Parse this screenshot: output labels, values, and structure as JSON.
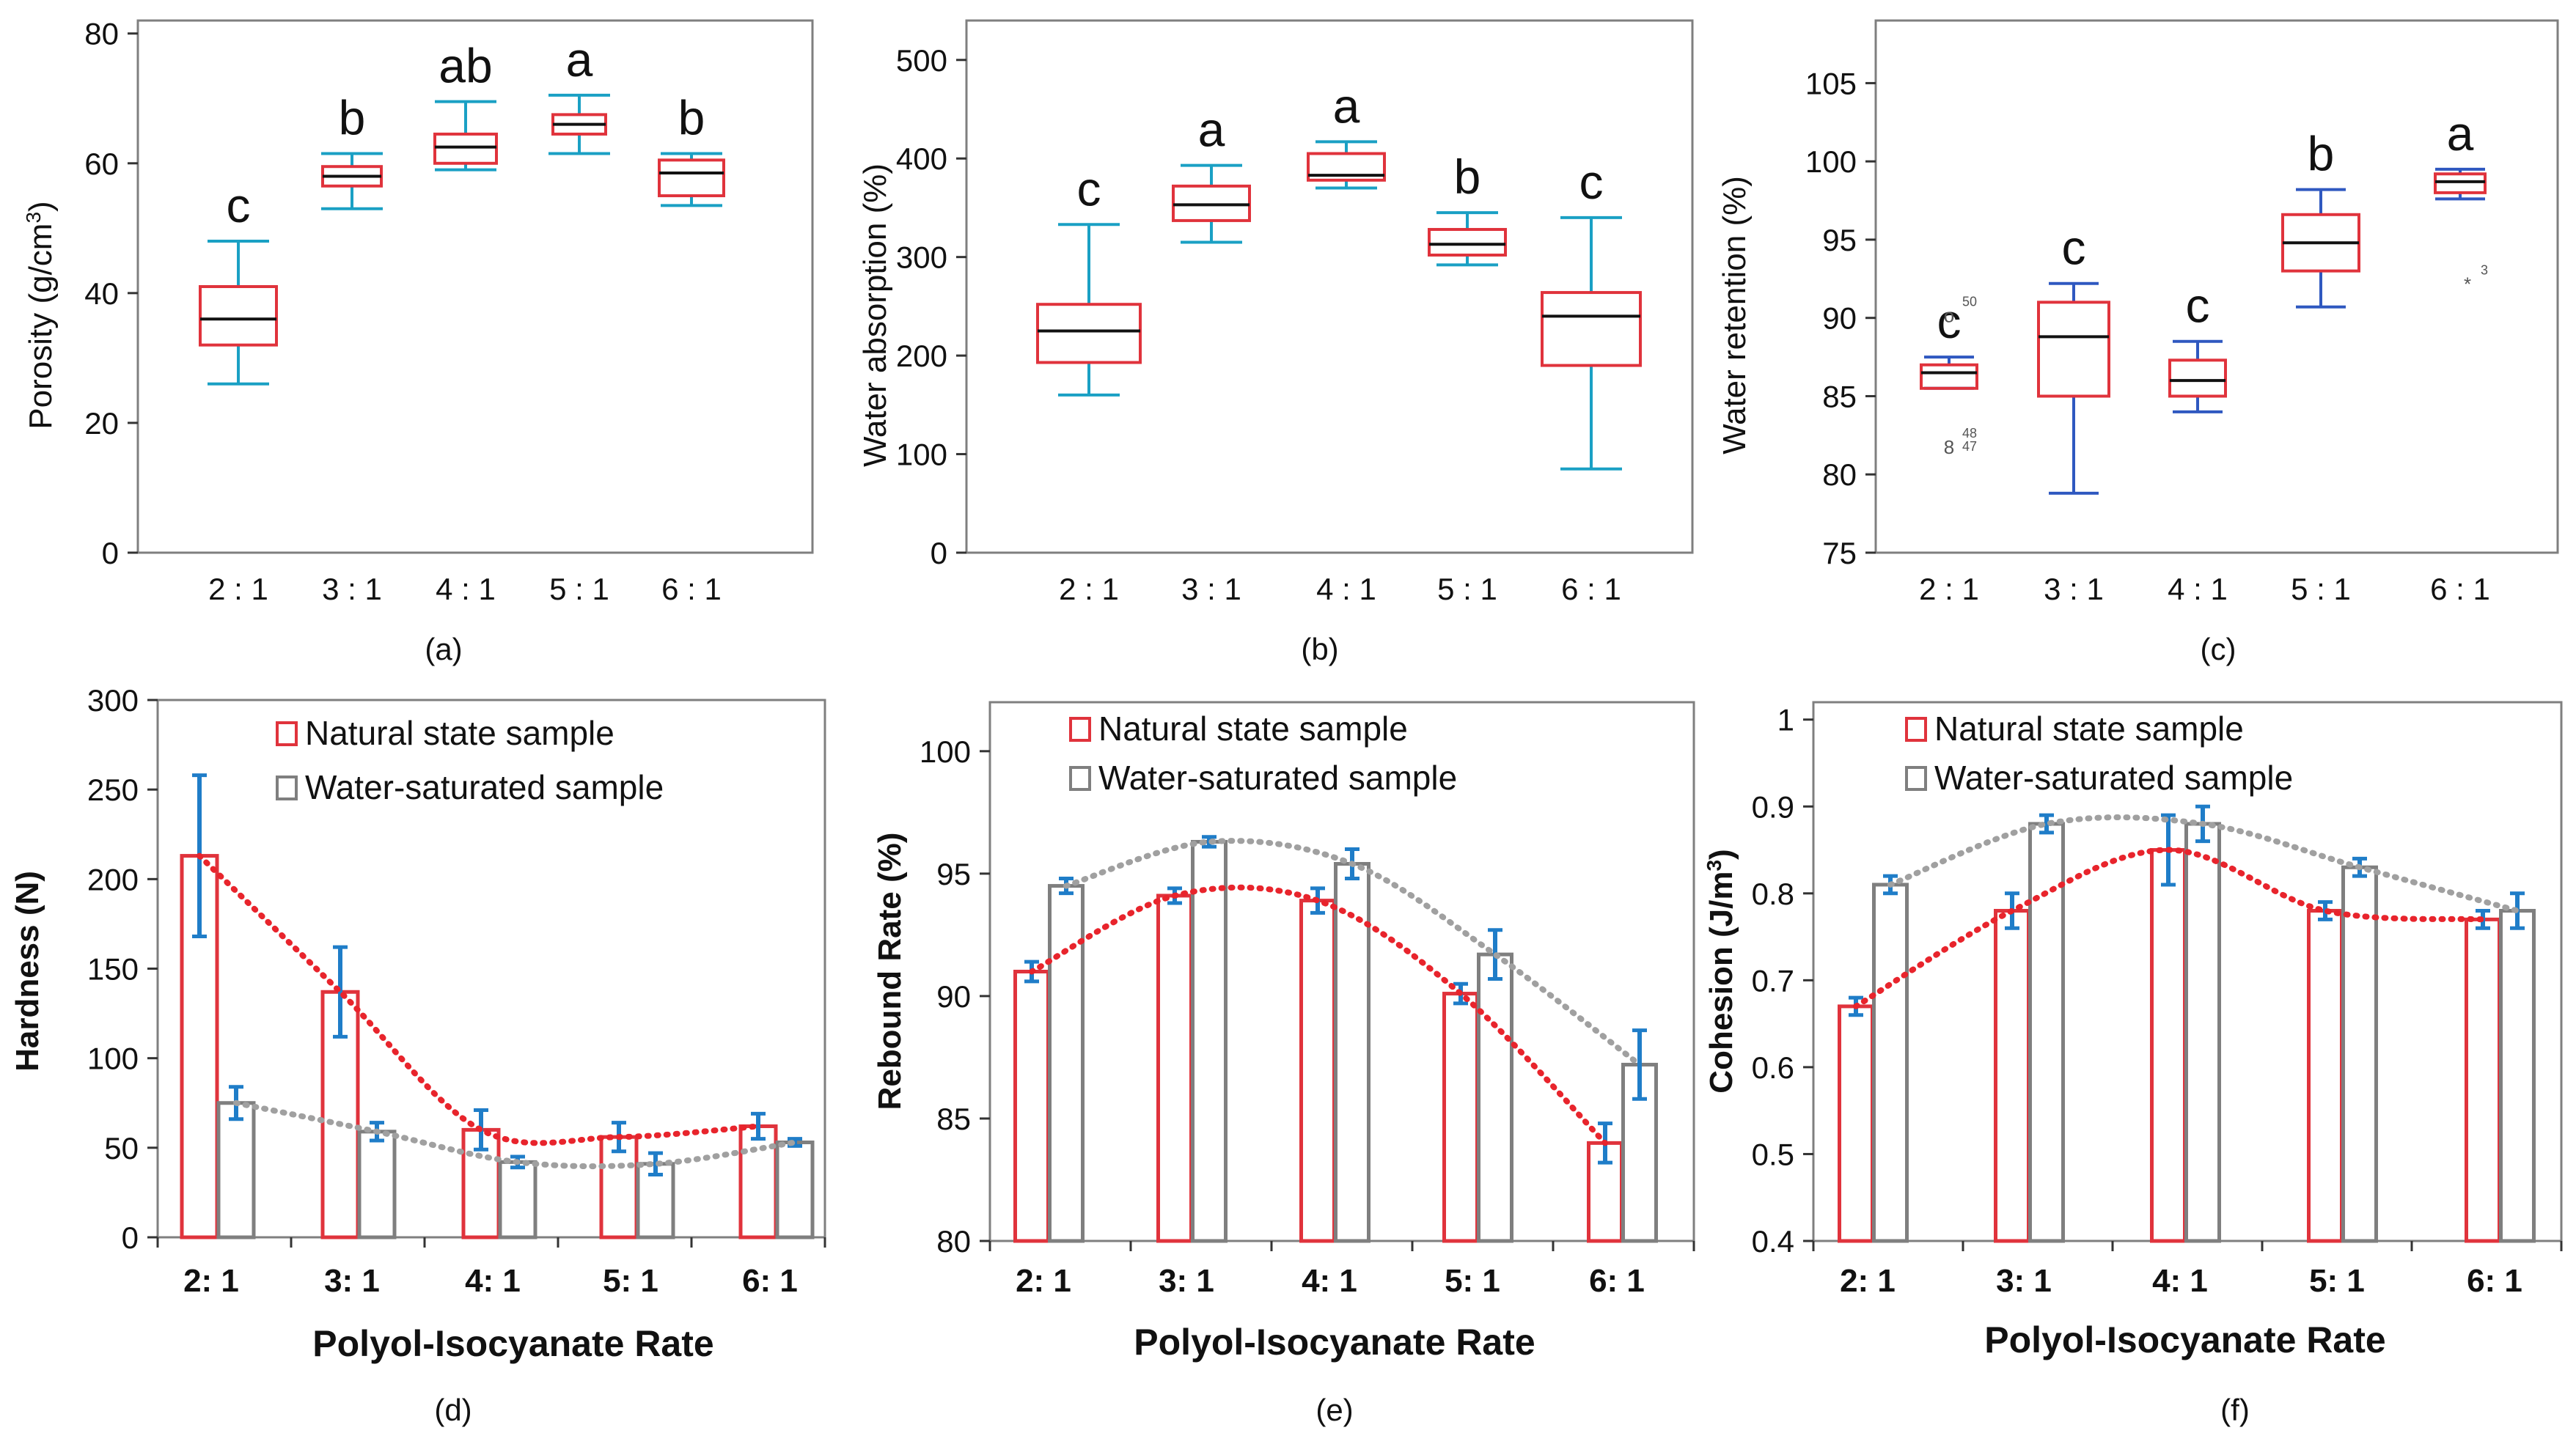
{
  "chart_data": [
    {
      "panel": "(a)",
      "type": "box",
      "categories": [
        "2 : 1",
        "3 : 1",
        "4 : 1",
        "5 : 1",
        "6 : 1"
      ],
      "ylabel_main": "Porosity (g/cm",
      "ylabel_sup": "3",
      "ylabel_tail": ")",
      "ylim": [
        0,
        82
      ],
      "yticks": [
        0,
        20,
        40,
        60,
        80
      ],
      "tick_labels": [
        "0",
        "20",
        "40",
        "60",
        "80"
      ],
      "colors": {
        "box": "#e0333c",
        "whisker": "#1aa0c4",
        "median": "#111111"
      },
      "boxes": [
        {
          "min": 26,
          "q1": 32,
          "median": 36,
          "q3": 41,
          "max": 48,
          "letter": "c"
        },
        {
          "min": 53,
          "q1": 56.5,
          "median": 58,
          "q3": 59.5,
          "max": 61.5,
          "letter": "b"
        },
        {
          "min": 59,
          "q1": 60,
          "median": 62.5,
          "q3": 64.5,
          "max": 69.5,
          "letter": "ab"
        },
        {
          "min": 61.5,
          "q1": 64.5,
          "median": 66,
          "q3": 67.5,
          "max": 70.5,
          "letter": "a"
        },
        {
          "min": 53.5,
          "q1": 55,
          "median": 58.5,
          "q3": 60.5,
          "max": 61.5,
          "letter": "b"
        }
      ],
      "outliers": []
    },
    {
      "panel": "(b)",
      "type": "box",
      "categories": [
        "2 : 1",
        "3 : 1",
        "4 : 1",
        "5 : 1",
        "6 : 1"
      ],
      "ylabel_main": "Water absorption  (%)",
      "ylabel_sup": "",
      "ylabel_tail": "",
      "ylim": [
        0,
        540
      ],
      "yticks": [
        0,
        100,
        200,
        300,
        400,
        500
      ],
      "tick_labels": [
        "0",
        "100",
        "200",
        "300",
        "400",
        "500"
      ],
      "colors": {
        "box": "#e0333c",
        "whisker": "#1aa0c4",
        "median": "#111111"
      },
      "boxes": [
        {
          "min": 160,
          "q1": 193,
          "median": 225,
          "q3": 252,
          "max": 333,
          "letter": "c"
        },
        {
          "min": 315,
          "q1": 337,
          "median": 353,
          "q3": 372,
          "max": 393,
          "letter": "a"
        },
        {
          "min": 370,
          "q1": 378,
          "median": 383,
          "q3": 405,
          "max": 417,
          "letter": "a"
        },
        {
          "min": 292,
          "q1": 302,
          "median": 313,
          "q3": 328,
          "max": 345,
          "letter": "b"
        },
        {
          "min": 85,
          "q1": 190,
          "median": 240,
          "q3": 264,
          "max": 340,
          "letter": "c"
        }
      ],
      "outliers": []
    },
    {
      "panel": "(c)",
      "type": "box",
      "categories": [
        "2 : 1",
        "3 : 1",
        "4 : 1",
        "5 : 1",
        "6 : 1"
      ],
      "ylabel_main": "Water retention  (%)",
      "ylabel_sup": "",
      "ylabel_tail": "",
      "ylim": [
        75,
        109
      ],
      "yticks": [
        75,
        80,
        85,
        90,
        95,
        100,
        105
      ],
      "tick_labels": [
        "75",
        "80",
        "85",
        "90",
        "95",
        "100",
        "105"
      ],
      "colors": {
        "box": "#e0333c",
        "whisker": "#2f58c0",
        "median": "#111111"
      },
      "boxes": [
        {
          "min": 85.5,
          "q1": 85.5,
          "median": 86.5,
          "q3": 87,
          "max": 87.5,
          "letter": "c"
        },
        {
          "min": 78.8,
          "q1": 85,
          "median": 88.8,
          "q3": 91,
          "max": 92.2,
          "letter": "c"
        },
        {
          "min": 84,
          "q1": 85,
          "median": 86,
          "q3": 87.3,
          "max": 88.5,
          "letter": "c"
        },
        {
          "min": 90.7,
          "q1": 93,
          "median": 94.8,
          "q3": 96.6,
          "max": 98.2,
          "letter": "b"
        },
        {
          "min": 97.6,
          "q1": 98,
          "median": 98.7,
          "q3": 99.2,
          "max": 99.5,
          "letter": "a"
        }
      ],
      "outliers": [
        {
          "cat": 0,
          "value": 90.2,
          "symbol": "o",
          "label": "50"
        },
        {
          "cat": 0,
          "value": 81.8,
          "symbol": "8",
          "label": "48"
        },
        {
          "cat": 0,
          "value": 81.6,
          "symbol": "",
          "label": "47"
        },
        {
          "cat": 4,
          "value": 92.2,
          "symbol": "*",
          "label": "3"
        }
      ]
    },
    {
      "panel": "(d)",
      "type": "bar",
      "categories": [
        "2: 1",
        "3: 1",
        "4: 1",
        "5: 1",
        "6: 1"
      ],
      "xlabel": "Polyol-Isocyanate Rate",
      "ylabel": "Hardness  (N)",
      "ylim": [
        0,
        300
      ],
      "yticks": [
        0,
        50,
        100,
        150,
        200,
        250,
        300
      ],
      "tick_labels": [
        "0",
        "50",
        "100",
        "150",
        "200",
        "250",
        "300"
      ],
      "series": [
        {
          "name": "Natural state sample",
          "color": "#e0333c",
          "values": [
            213,
            137,
            60,
            56,
            62
          ],
          "errors": [
            45,
            25,
            11,
            8,
            7
          ]
        },
        {
          "name": "Water-saturated sample",
          "color": "#7f7f7f",
          "values": [
            75,
            59,
            42,
            41,
            53
          ],
          "errors": [
            9,
            5,
            3,
            6,
            2
          ]
        }
      ],
      "error_color": "#1f7dc8",
      "trend_colors": [
        "#e8242c",
        "#a0a0a0"
      ]
    },
    {
      "panel": "(e)",
      "type": "bar",
      "categories": [
        "2: 1",
        "3: 1",
        "4: 1",
        "5: 1",
        "6: 1"
      ],
      "xlabel": "Polyol-Isocyanate Rate",
      "ylabel": "Rebound Rate  (%)",
      "ylim": [
        80,
        102
      ],
      "yticks": [
        80,
        85,
        90,
        95,
        100
      ],
      "tick_labels": [
        "80",
        "85",
        "90",
        "95",
        "100"
      ],
      "series": [
        {
          "name": "Natural state sample",
          "color": "#e0333c",
          "values": [
            91,
            94.1,
            93.9,
            90.1,
            84
          ],
          "errors": [
            0.4,
            0.3,
            0.5,
            0.4,
            0.8
          ]
        },
        {
          "name": "Water-saturated sample",
          "color": "#7f7f7f",
          "values": [
            94.5,
            96.3,
            95.4,
            91.7,
            87.2
          ],
          "errors": [
            0.3,
            0.2,
            0.6,
            1.0,
            1.4
          ]
        }
      ],
      "error_color": "#1f7dc8",
      "trend_colors": [
        "#e8242c",
        "#a0a0a0"
      ]
    },
    {
      "panel": "(f)",
      "type": "bar",
      "categories": [
        "2: 1",
        "3: 1",
        "4: 1",
        "5: 1",
        "6: 1"
      ],
      "xlabel": "Polyol-Isocyanate Rate",
      "ylabel_main": "Cohesion (J/m",
      "ylabel_sup": "3",
      "ylabel_tail": ")",
      "ylim": [
        0.4,
        1.02
      ],
      "yticks": [
        0.4,
        0.5,
        0.6,
        0.7,
        0.8,
        0.9,
        1.0
      ],
      "tick_labels": [
        "0.4",
        "0.5",
        "0.6",
        "0.7",
        "0.8",
        "0.9",
        "1"
      ],
      "series": [
        {
          "name": "Natural state sample",
          "color": "#e0333c",
          "values": [
            0.67,
            0.78,
            0.85,
            0.78,
            0.77
          ],
          "errors": [
            0.01,
            0.02,
            0.04,
            0.01,
            0.01
          ]
        },
        {
          "name": "Water-saturated sample",
          "color": "#7f7f7f",
          "values": [
            0.81,
            0.88,
            0.88,
            0.83,
            0.78
          ],
          "errors": [
            0.01,
            0.01,
            0.02,
            0.01,
            0.02
          ]
        }
      ],
      "error_color": "#1f7dc8",
      "trend_colors": [
        "#e8242c",
        "#a0a0a0"
      ]
    }
  ]
}
